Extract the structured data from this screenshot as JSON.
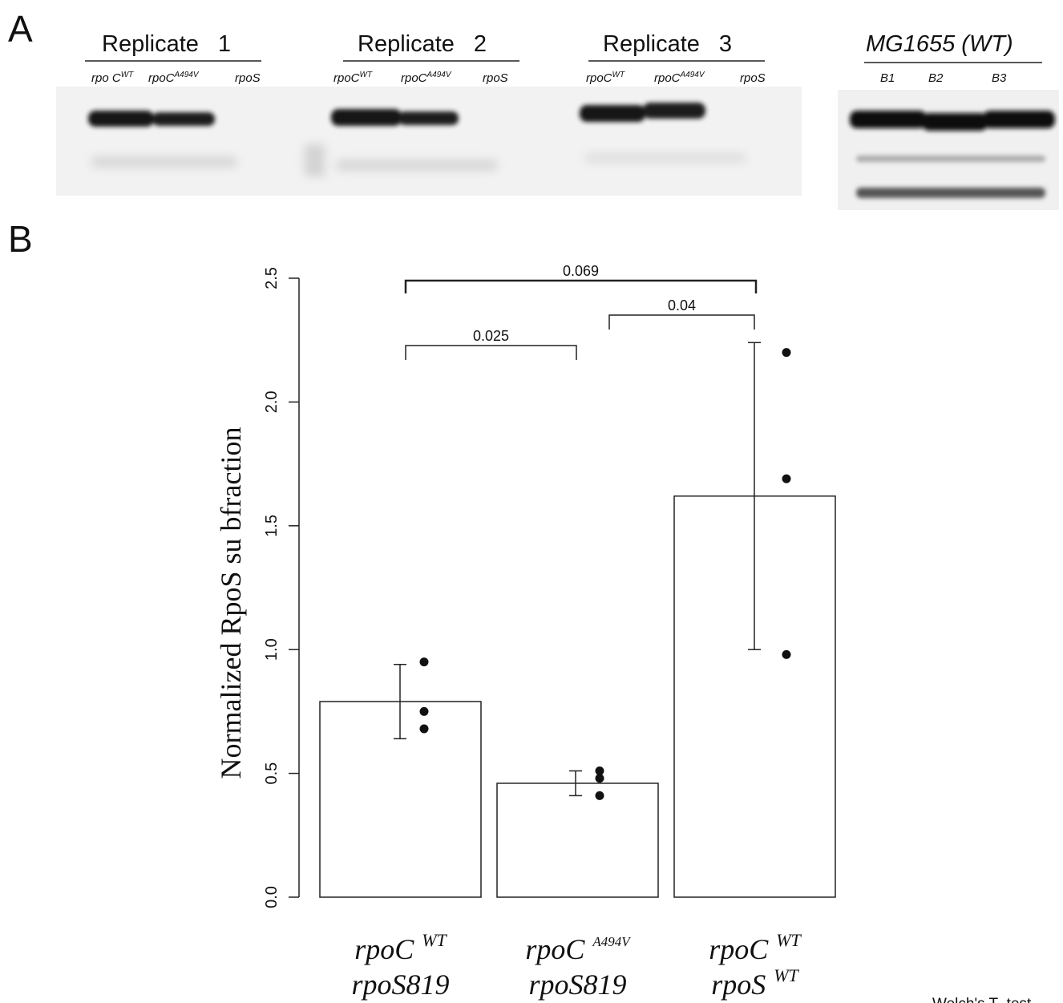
{
  "panel_a": {
    "label": "A",
    "replicates": [
      {
        "title": "Replicate",
        "num": "1",
        "lanes": [
          {
            "base": "rpo C",
            "sup": "WT"
          },
          {
            "base": "rpoC",
            "sup": "A494V"
          },
          {
            "base": "rpoS",
            "sup": ""
          }
        ]
      },
      {
        "title": "Replicate",
        "num": "2",
        "lanes": [
          {
            "base": "rpoC",
            "sup": "WT"
          },
          {
            "base": "rpoC",
            "sup": "A494V"
          },
          {
            "base": "rpoS",
            "sup": ""
          }
        ]
      },
      {
        "title": "Replicate",
        "num": "3",
        "lanes": [
          {
            "base": "rpoC",
            "sup": "WT"
          },
          {
            "base": "rpoC",
            "sup": "A494V"
          },
          {
            "base": "rpoS",
            "sup": ""
          }
        ]
      }
    ],
    "wt_group": {
      "title": "MG1655 (WT)",
      "lanes": [
        "B1",
        "B2",
        "B3"
      ]
    }
  },
  "panel_b": {
    "label": "B",
    "footnote": "Welch's T- test"
  },
  "chart_data": {
    "type": "bar",
    "ylabel": "Normalized RpoS su        bfraction",
    "ylim": [
      0,
      2.5
    ],
    "yticks": [
      "0.0",
      "0.5",
      "1.0",
      "1.5",
      "2.0",
      "2.5"
    ],
    "categories": [
      {
        "line1": "rpoC",
        "sup1": "WT",
        "line2": "rpoS819",
        "sup2": ""
      },
      {
        "line1": "rpoC",
        "sup1": "A494V",
        "line2": "rpoS819",
        "sup2": ""
      },
      {
        "line1": "rpoC",
        "sup1": "WT",
        "line2": "rpoS",
        "sup2": "WT"
      }
    ],
    "values": [
      0.79,
      0.46,
      1.62
    ],
    "error_low": [
      0.64,
      0.41,
      1.0
    ],
    "error_high": [
      0.94,
      0.51,
      2.24
    ],
    "points": [
      [
        0.95,
        0.75,
        0.68
      ],
      [
        0.51,
        0.48,
        0.41
      ],
      [
        2.2,
        1.69,
        0.98
      ]
    ],
    "comparisons": [
      {
        "a": 0,
        "b": 1,
        "p": "0.025"
      },
      {
        "a": 1,
        "b": 2,
        "p": "0.04"
      },
      {
        "a": 0,
        "b": 2,
        "p": "0.069"
      }
    ]
  }
}
